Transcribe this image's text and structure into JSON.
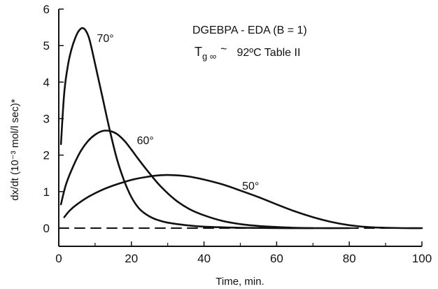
{
  "chart_data": {
    "type": "line",
    "title": "",
    "xlabel": "Time, min.",
    "ylabel": "dx/dt (10⁻³  mol/l sec)*",
    "xlim": [
      0,
      100
    ],
    "ylim": [
      0,
      6
    ],
    "xticks": [
      "0",
      "20",
      "40",
      "60",
      "80",
      "100"
    ],
    "yticks": [
      "0",
      "1",
      "2",
      "3",
      "4",
      "5",
      "6"
    ],
    "grid": false,
    "legend": "none",
    "annotations": {
      "system": "DGEBPA - EDA (B = 1)",
      "tg_symbol": "T",
      "tg_subscript": "g ∞",
      "tg_approx": "~",
      "tg_value": "92ºC Table II"
    },
    "series": [
      {
        "name": "70°",
        "color": "#111111",
        "style": "solid",
        "x": [
          0.6,
          1.5,
          2.5,
          3.5,
          4.5,
          5.5,
          6.5,
          7.5,
          8.5,
          10,
          12,
          14,
          16,
          18,
          20,
          22,
          24,
          26,
          28,
          30,
          35,
          40,
          50,
          60,
          70
        ],
        "y": [
          2.3,
          3.7,
          4.45,
          4.9,
          5.2,
          5.4,
          5.48,
          5.4,
          5.15,
          4.5,
          3.6,
          2.7,
          1.9,
          1.3,
          0.85,
          0.55,
          0.38,
          0.27,
          0.2,
          0.15,
          0.08,
          0.04,
          0.01,
          0.0,
          0.0
        ]
      },
      {
        "name": "60°",
        "color": "#111111",
        "style": "solid",
        "x": [
          0.6,
          2,
          4,
          6,
          8,
          10,
          12,
          14,
          16,
          18,
          20,
          22,
          25,
          28,
          32,
          36,
          40,
          45,
          50,
          55,
          60,
          65,
          70,
          80
        ],
        "y": [
          0.65,
          1.2,
          1.7,
          2.1,
          2.38,
          2.56,
          2.66,
          2.66,
          2.58,
          2.4,
          2.15,
          1.88,
          1.5,
          1.15,
          0.78,
          0.52,
          0.35,
          0.2,
          0.11,
          0.06,
          0.03,
          0.01,
          0.0,
          0.0
        ]
      },
      {
        "name": "50°",
        "color": "#111111",
        "style": "solid",
        "x": [
          1.5,
          3,
          5,
          8,
          12,
          16,
          20,
          24,
          28,
          32,
          36,
          40,
          45,
          50,
          55,
          60,
          65,
          70,
          75,
          80,
          85,
          90,
          95,
          100
        ],
        "y": [
          0.3,
          0.48,
          0.65,
          0.85,
          1.05,
          1.2,
          1.32,
          1.4,
          1.45,
          1.45,
          1.41,
          1.33,
          1.2,
          1.03,
          0.85,
          0.65,
          0.46,
          0.3,
          0.17,
          0.08,
          0.03,
          0.01,
          0.0,
          0.0
        ]
      },
      {
        "name": "",
        "color": "#111111",
        "style": "dashed",
        "x": [
          0,
          100
        ],
        "y": [
          0,
          0
        ]
      }
    ],
    "curve_labels": [
      {
        "text": "70°",
        "x": 10.5,
        "y": 5.1
      },
      {
        "text": "60°",
        "x": 21.5,
        "y": 2.3
      },
      {
        "text": "50°",
        "x": 50.5,
        "y": 1.05
      }
    ]
  }
}
